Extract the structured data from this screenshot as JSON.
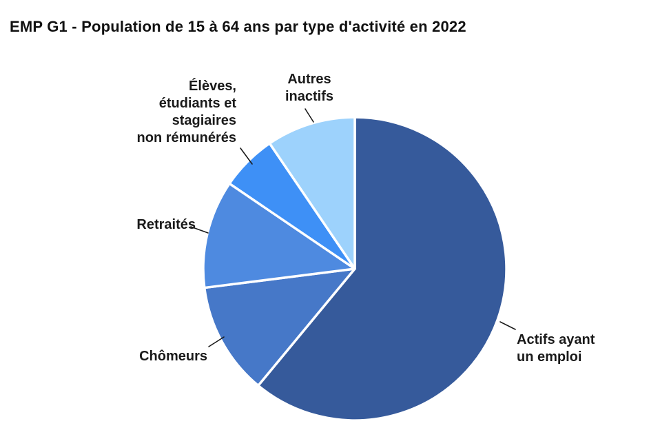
{
  "title": "EMP G1 - Population de 15 à 64 ans par type d'activité en 2022",
  "chart_data": {
    "type": "pie",
    "title": "EMP G1 - Population de 15 à 64 ans par type d'activité en 2022",
    "value_unit": "percent of population aged 15-64 (values estimated from slice angles; no numeric data labels shown in chart)",
    "start_angle": "12 o'clock",
    "direction": "clockwise",
    "legend_position": "outside labels with leader lines",
    "background_color": "#ffffff",
    "slice_border_color": "#ffffff",
    "leader_line_color": "#1a1a1a",
    "text_color": "#1a1a1a",
    "slices": [
      {
        "key": "actifs",
        "label": "Actifs ayant un emploi",
        "label_lines": [
          "Actifs ayant",
          "un emploi"
        ],
        "value_pct": 61,
        "color": "#365A9B"
      },
      {
        "key": "chomeurs",
        "label": "Chômeurs",
        "label_lines": [
          "Chômeurs"
        ],
        "value_pct": 12,
        "color": "#4678C8"
      },
      {
        "key": "retraites",
        "label": "Retraités",
        "label_lines": [
          "Retraités"
        ],
        "value_pct": 11.5,
        "color": "#4E8AE0"
      },
      {
        "key": "eleves",
        "label": "Élèves, étudiants et stagiaires non rémunérés",
        "label_lines": [
          "Élèves,",
          "étudiants et",
          "stagiaires",
          "non rémunérés"
        ],
        "value_pct": 6,
        "color": "#3E90F6"
      },
      {
        "key": "autres",
        "label": "Autres inactifs",
        "label_lines": [
          "Autres",
          "inactifs"
        ],
        "value_pct": 9.5,
        "color": "#9DD2FC"
      }
    ]
  }
}
